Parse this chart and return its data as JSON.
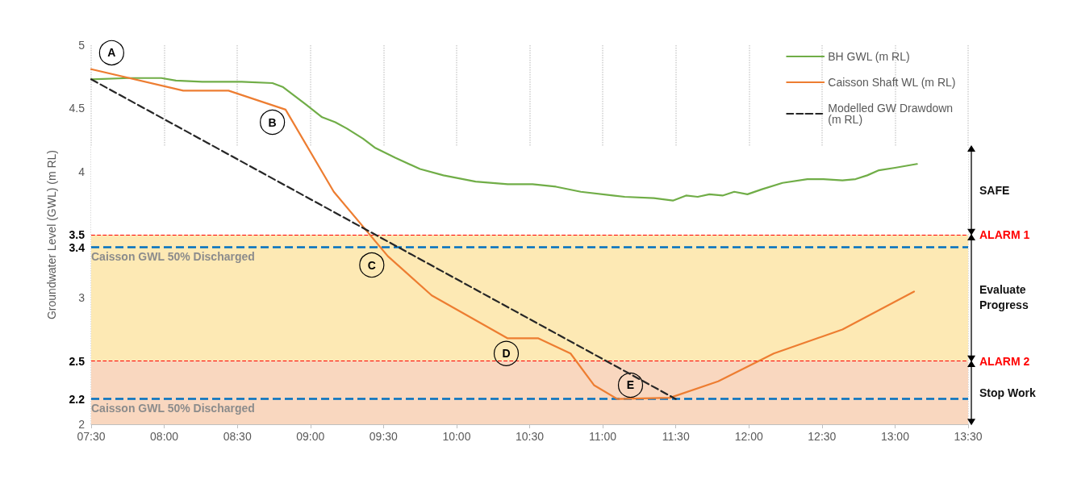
{
  "chart_data": {
    "type": "line",
    "ylabel": "Groundwater Level (GWL) (m RL)",
    "xlim": [
      7.5,
      13.5
    ],
    "xticks": [
      {
        "value": 7.5,
        "label": "07:30"
      },
      {
        "value": 8,
        "label": "08:00"
      },
      {
        "value": 8.5,
        "label": "08:30"
      },
      {
        "value": 9,
        "label": "09:00"
      },
      {
        "value": 9.5,
        "label": "09:30"
      },
      {
        "value": 10,
        "label": "10:00"
      },
      {
        "value": 10.5,
        "label": "10:30"
      },
      {
        "value": 11,
        "label": "11:00"
      },
      {
        "value": 11.5,
        "label": "11:30"
      },
      {
        "value": 12,
        "label": "12:00"
      },
      {
        "value": 12.5,
        "label": "12:30"
      },
      {
        "value": 13,
        "label": "13:00"
      },
      {
        "value": 13.5,
        "label": "13:30"
      }
    ],
    "ylim": [
      2,
      5
    ],
    "yticks": [
      2,
      2.2,
      2.5,
      3,
      3.4,
      3.5,
      4,
      4.5,
      5
    ],
    "grid": "x",
    "legend": "top right",
    "marker": "none",
    "series": [
      {
        "name": "BH GWL (m RL)",
        "color": "#70ad47",
        "x": [
          7.5,
          7.76,
          7.98,
          8.08,
          8.26,
          8.53,
          8.74,
          8.81,
          8.89,
          8.97,
          9.08,
          9.17,
          9.25,
          9.36,
          9.44,
          9.58,
          9.75,
          9.91,
          10.13,
          10.35,
          10.52,
          10.68,
          10.85,
          11.07,
          11.15,
          11.35,
          11.48,
          11.57,
          11.65,
          11.73,
          11.82,
          11.9,
          11.99,
          12.09,
          12.23,
          12.4,
          12.51,
          12.64,
          12.73,
          12.81,
          12.89,
          13,
          13.15
        ],
        "values": [
          4.73,
          4.74,
          4.74,
          4.72,
          4.71,
          4.71,
          4.7,
          4.67,
          4.6,
          4.53,
          4.43,
          4.39,
          4.34,
          4.26,
          4.19,
          4.11,
          4.02,
          3.97,
          3.92,
          3.9,
          3.9,
          3.88,
          3.84,
          3.81,
          3.8,
          3.79,
          3.77,
          3.81,
          3.8,
          3.82,
          3.81,
          3.84,
          3.82,
          3.86,
          3.91,
          3.94,
          3.94,
          3.93,
          3.94,
          3.97,
          4.01,
          4.03,
          4.06
        ]
      },
      {
        "name": "Caisson Shaft WL (m RL)",
        "color": "#ed7d31",
        "x": [
          7.5,
          8.13,
          8.44,
          8.83,
          9.16,
          9.53,
          9.83,
          10.35,
          10.56,
          10.78,
          10.94,
          11.1,
          11.46,
          11.79,
          12.17,
          12.64,
          13.13
        ],
        "values": [
          4.81,
          4.64,
          4.64,
          4.49,
          3.84,
          3.33,
          3.02,
          2.68,
          2.68,
          2.56,
          2.31,
          2.2,
          2.21,
          2.34,
          2.56,
          2.75,
          3.05
        ]
      },
      {
        "name": "Modelled GW Drawdown (m RL)",
        "color": "#262626",
        "line_style": "dashed",
        "x": [
          7.5,
          11.5
        ],
        "values": [
          4.73,
          2.2
        ]
      }
    ],
    "ref_lines": [
      {
        "axis": "y",
        "value": 3.5,
        "label": "ALARM 1",
        "color": "#ff0000",
        "line_style": "dashed"
      },
      {
        "axis": "y",
        "value": 2.5,
        "label": "ALARM 2",
        "color": "#ff0000",
        "line_style": "dashed"
      },
      {
        "axis": "y",
        "value": 3.4,
        "label": "Caisson GWL 50% Discharged",
        "color": "#0070c0",
        "line_style": "dashed"
      },
      {
        "axis": "y",
        "value": 2.2,
        "label": "Caisson GWL 50% Discharged",
        "color": "#0070c0",
        "line_style": "dashed"
      }
    ],
    "bands": [
      {
        "axis": "y",
        "from": 3.5,
        "to": 4.2,
        "label": "SAFE",
        "color": "#ffffff"
      },
      {
        "axis": "y",
        "from": 2.5,
        "to": 3.5,
        "label": "Evaluate Progress",
        "color": "#fde9b4"
      },
      {
        "axis": "y",
        "from": 2,
        "to": 2.5,
        "label": "Stop Work",
        "color": "#f9d7bf"
      }
    ],
    "annotations": [
      {
        "text": "A",
        "x": 7.64,
        "y": 4.94
      },
      {
        "text": "B",
        "x": 8.74,
        "y": 4.39
      },
      {
        "text": "C",
        "x": 9.42,
        "y": 3.26
      },
      {
        "text": "D",
        "x": 10.34,
        "y": 2.56
      },
      {
        "text": "E",
        "x": 11.19,
        "y": 2.31
      }
    ]
  }
}
